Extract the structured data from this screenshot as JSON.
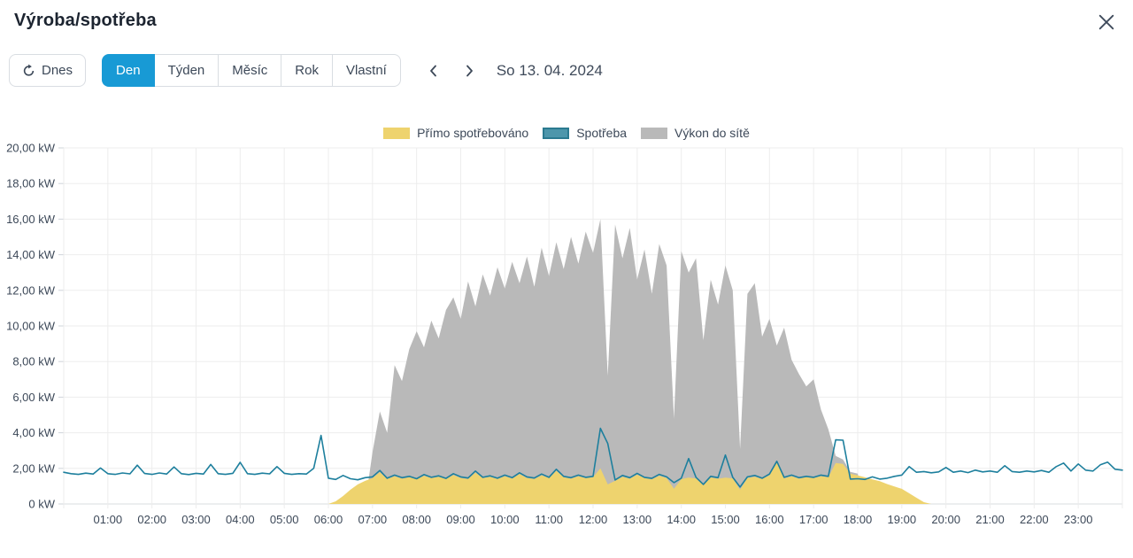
{
  "header": {
    "title": "Výroba/spotřeba"
  },
  "toolbar": {
    "today_label": "Dnes",
    "tabs": [
      "Den",
      "Týden",
      "Měsíc",
      "Rok",
      "Vlastní"
    ],
    "active_tab": "Den",
    "active_tab_color": "#189ad5",
    "date_label": "So 13. 04. 2024"
  },
  "chart_data": {
    "type": "area",
    "title": "",
    "xlabel": "",
    "ylabel": "kW",
    "ylim": [
      0,
      20
    ],
    "xlim_hours": [
      0,
      24
    ],
    "grid": true,
    "legend_position": "top-center",
    "x_start_minutes": 0,
    "x_step_minutes": 10,
    "x_tick_labels": [
      "01:00",
      "02:00",
      "03:00",
      "04:00",
      "05:00",
      "06:00",
      "07:00",
      "08:00",
      "09:00",
      "10:00",
      "11:00",
      "12:00",
      "13:00",
      "14:00",
      "15:00",
      "16:00",
      "17:00",
      "18:00",
      "19:00",
      "20:00",
      "21:00",
      "22:00",
      "23:00"
    ],
    "y_tick_labels": [
      "0 kW",
      "2,00 kW",
      "4,00 kW",
      "6,00 kW",
      "8,00 kW",
      "10,00 kW",
      "12,00 kW",
      "14,00 kW",
      "16,00 kW",
      "18,00 kW",
      "20,00 kW"
    ],
    "draw_order": [
      2,
      0,
      1
    ],
    "series": [
      {
        "name": "Přímo spotřebováno",
        "type": "area",
        "color": "#eed36e",
        "values": [
          0,
          0,
          0,
          0,
          0,
          0,
          0,
          0,
          0,
          0,
          0,
          0,
          0,
          0,
          0,
          0,
          0,
          0,
          0,
          0,
          0,
          0,
          0,
          0,
          0,
          0,
          0,
          0,
          0,
          0,
          0,
          0,
          0,
          0,
          0,
          0,
          0,
          0.15,
          0.45,
          0.8,
          1.1,
          1.3,
          1.45,
          1.78,
          1.4,
          1.55,
          1.42,
          1.5,
          1.38,
          1.58,
          1.45,
          1.52,
          1.4,
          1.62,
          1.46,
          1.4,
          1.76,
          1.45,
          1.52,
          1.4,
          1.55,
          1.42,
          1.68,
          1.46,
          1.4,
          1.6,
          1.45,
          1.86,
          1.5,
          1.42,
          1.55,
          1.45,
          1.5,
          2.0,
          1.1,
          1.3,
          1.52,
          1.42,
          1.64,
          1.45,
          1.38,
          1.58,
          1.46,
          0.85,
          1.4,
          1.48,
          1.44,
          1.05,
          1.48,
          1.42,
          1.48,
          1.44,
          0.8,
          1.46,
          1.52,
          1.4,
          1.6,
          2.3,
          1.44,
          1.55,
          1.42,
          1.5,
          1.45,
          1.55,
          1.5,
          2.3,
          2.25,
          1.7,
          1.6,
          1.5,
          1.38,
          1.28,
          1.12,
          0.98,
          0.85,
          0.6,
          0.35,
          0.1,
          0,
          0,
          0,
          0,
          0,
          0,
          0,
          0,
          0,
          0,
          0,
          0,
          0,
          0,
          0,
          0,
          0,
          0,
          0,
          0,
          0,
          0,
          0,
          0,
          0,
          0,
          0
        ]
      },
      {
        "name": "Spotřeba",
        "type": "line",
        "color": "#1d7f9d",
        "legend_fill": "#4d96ab",
        "legend_border": "#2b7a90",
        "values": [
          1.78,
          1.7,
          1.66,
          1.73,
          1.68,
          2.02,
          1.7,
          1.66,
          1.74,
          1.69,
          2.18,
          1.71,
          1.66,
          1.74,
          1.68,
          2.08,
          1.7,
          1.65,
          1.72,
          1.68,
          2.22,
          1.7,
          1.66,
          1.72,
          2.34,
          1.7,
          1.66,
          1.73,
          1.69,
          2.1,
          1.72,
          1.66,
          1.7,
          1.68,
          2.0,
          3.85,
          1.45,
          1.38,
          1.6,
          1.42,
          1.36,
          1.48,
          1.52,
          1.88,
          1.45,
          1.62,
          1.48,
          1.55,
          1.42,
          1.65,
          1.5,
          1.58,
          1.44,
          1.7,
          1.52,
          1.46,
          1.85,
          1.5,
          1.58,
          1.45,
          1.62,
          1.48,
          1.75,
          1.52,
          1.46,
          1.68,
          1.5,
          1.95,
          1.55,
          1.48,
          1.62,
          1.5,
          1.55,
          4.25,
          3.4,
          1.35,
          1.6,
          1.48,
          1.72,
          1.5,
          1.44,
          1.66,
          1.52,
          1.2,
          1.45,
          2.55,
          1.5,
          1.1,
          1.55,
          1.48,
          2.75,
          1.5,
          0.95,
          1.52,
          1.6,
          1.45,
          1.68,
          2.4,
          1.5,
          1.62,
          1.48,
          1.55,
          1.5,
          1.62,
          1.55,
          3.6,
          3.58,
          1.4,
          1.42,
          1.38,
          1.52,
          1.4,
          1.45,
          1.55,
          1.62,
          2.1,
          1.78,
          1.82,
          1.75,
          1.8,
          2.05,
          1.78,
          1.85,
          1.76,
          1.9,
          1.8,
          1.85,
          1.78,
          2.15,
          1.82,
          1.78,
          1.85,
          1.8,
          1.88,
          1.78,
          2.1,
          2.3,
          1.85,
          2.25,
          1.9,
          1.85,
          2.2,
          2.35,
          1.95,
          1.9
        ]
      },
      {
        "name": "Výkon do sítě",
        "type": "area",
        "color": "#b9b9b9",
        "values": [
          0,
          0,
          0,
          0,
          0,
          0,
          0,
          0,
          0,
          0,
          0,
          0,
          0,
          0,
          0,
          0,
          0,
          0,
          0,
          0,
          0,
          0,
          0,
          0,
          0,
          0,
          0,
          0,
          0,
          0,
          0,
          0,
          0,
          0,
          0,
          0,
          0,
          0,
          0,
          0,
          0,
          0,
          2.9,
          5.2,
          4.0,
          7.8,
          6.9,
          8.7,
          9.7,
          8.8,
          10.3,
          9.3,
          10.9,
          11.6,
          10.4,
          12.5,
          11.1,
          12.9,
          11.7,
          13.3,
          12.1,
          13.6,
          12.4,
          13.9,
          12.2,
          14.4,
          12.8,
          14.7,
          13.2,
          15.0,
          13.5,
          15.3,
          14.1,
          16.0,
          7.2,
          15.7,
          13.8,
          15.5,
          12.6,
          14.3,
          11.8,
          14.6,
          13.4,
          4.8,
          14.2,
          13.0,
          13.8,
          9.2,
          12.6,
          11.2,
          13.4,
          12.0,
          3.1,
          11.8,
          12.4,
          9.4,
          10.4,
          8.9,
          9.9,
          8.1,
          7.3,
          6.6,
          7.0,
          5.3,
          4.2,
          2.7,
          2.5,
          1.8,
          1.7,
          0,
          0,
          0,
          0,
          0,
          0,
          0,
          0,
          0,
          0,
          0,
          0,
          0,
          0,
          0,
          0,
          0,
          0,
          0,
          0,
          0,
          0,
          0,
          0,
          0,
          0,
          0,
          0,
          0,
          0,
          0,
          0,
          0,
          0,
          0,
          0
        ]
      }
    ]
  }
}
